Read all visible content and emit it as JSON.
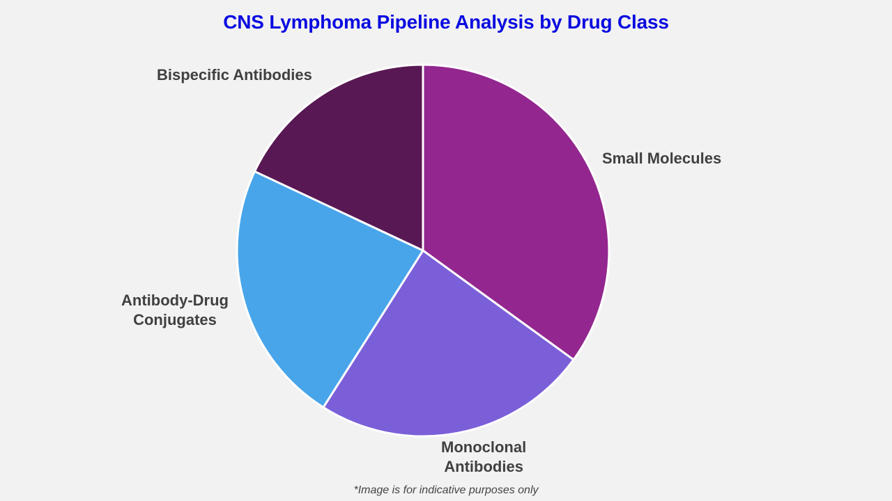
{
  "title": "CNS Lymphoma Pipeline Analysis by Drug Class",
  "footnote": "*Image is for indicative purposes only",
  "chart_data": {
    "type": "pie",
    "title": "CNS Lymphoma Pipeline Analysis by Drug Class",
    "categories": [
      "Small Molecules",
      "Monoclonal Antibodies",
      "Antibody-Drug Conjugates",
      "Bispecific Antibodies"
    ],
    "values": [
      35,
      24,
      23,
      18
    ],
    "colors": [
      "#93278f",
      "#7b5fd9",
      "#48a5ea",
      "#581853"
    ],
    "start_angle_deg": 0,
    "direction": "clockwise",
    "legend": "none (direct labels)"
  },
  "labels": {
    "small_molecules": "Small Molecules",
    "monoclonal_line1": "Monoclonal",
    "monoclonal_line2": "Antibodies",
    "adc_line1": "Antibody-Drug",
    "adc_line2": "Conjugates",
    "bispecific": "Bispecific Antibodies"
  }
}
